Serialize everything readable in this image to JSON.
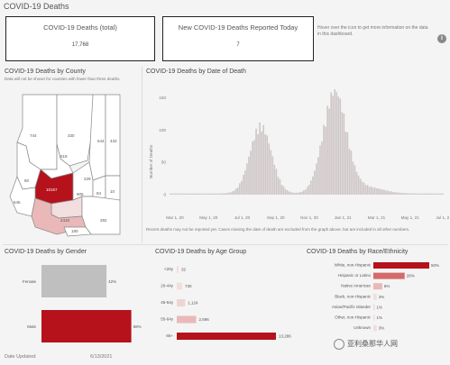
{
  "page_title": "COVID-19 Deaths",
  "kpis": {
    "total_label": "COVID-19 Deaths (total)",
    "total_value": "17,768",
    "new_label": "New COVID-19 Deaths Reported Today",
    "new_value": "7"
  },
  "hint_text": "Hover over the icon to get more information on the data in this dashboard.",
  "info_icon": "info-icon",
  "county": {
    "title": "COVID-19 Deaths by County",
    "note": "Data will not be shown for counties with fewer than three deaths.",
    "labels": [
      "744",
      "330",
      "544",
      "433",
      "519",
      "80",
      "10157",
      "229",
      "905",
      "84",
      "10",
      "645",
      "2416",
      "292",
      "180"
    ]
  },
  "date_chart": {
    "title": "COVID-19 Deaths by Date of Death",
    "ylabel": "Number of Deaths",
    "note": "Recent deaths may not be reported yet. Cases missing the date of death are excluded from the graph above, but are included in all other numbers."
  },
  "chart_data": [
    {
      "type": "bar",
      "title": "COVID-19 Deaths by Date of Death",
      "ylabel": "Number of Deaths",
      "ylim": [
        0,
        170
      ],
      "yticks": [
        0,
        50,
        100,
        150
      ],
      "xticks": [
        "Mar 1, 20",
        "May 1, 20",
        "Jul 1, 20",
        "Sep 1, 20",
        "Nov 1, 20",
        "Jan 1, 21",
        "Mar 1, 21",
        "May 1, 21",
        "Jul 1, 21"
      ],
      "shape_note": "daily bars; first peak ~110 around mid-July 2020, second peak ~165 around early January 2021"
    },
    {
      "type": "bar",
      "title": "COVID-19 Deaths by Gender",
      "categories": [
        "Female",
        "Male"
      ],
      "values": [
        42,
        58
      ],
      "unit": "%"
    },
    {
      "type": "bar",
      "title": "COVID-19 Deaths by Age Group",
      "categories": [
        "<20y",
        "20-44y",
        "45-54y",
        "55-64y",
        "65+"
      ],
      "values": [
        32,
        730,
        1124,
        2596,
        13286
      ],
      "labels": [
        "32",
        "730",
        "1,124",
        "2,596",
        "13,286"
      ]
    },
    {
      "type": "bar",
      "title": "COVID-19 Deaths by Race/Ethnicity",
      "categories": [
        "White, non-Hispanic",
        "Hispanic or Latino",
        "Native American",
        "Black, non-Hispanic",
        "Asian/Pacific Islander",
        "Other, non-Hispanic",
        "Unknown"
      ],
      "values": [
        50,
        28,
        8,
        3,
        1,
        1,
        3
      ],
      "labels": [
        "50%",
        "28%",
        "8%",
        "3%",
        "1%",
        "1%",
        "3%"
      ]
    }
  ],
  "gender": {
    "title": "COVID-19 Deaths by Gender"
  },
  "age": {
    "title": "COVID-19 Deaths by Age Group"
  },
  "race": {
    "title": "COVID-19 Deaths by Race/Ethnicity"
  },
  "footer": {
    "date_label": "Date Updated:",
    "date_value": "6/13/2021"
  },
  "watermark": "亚利桑那华人网",
  "colors": {
    "dark_red": "#b5121b",
    "mid_red": "#d46a6a",
    "light_red": "#eab8b8",
    "pale": "#f2dede",
    "grey": "#bfbfbf",
    "bars": "#cfc7c7"
  }
}
